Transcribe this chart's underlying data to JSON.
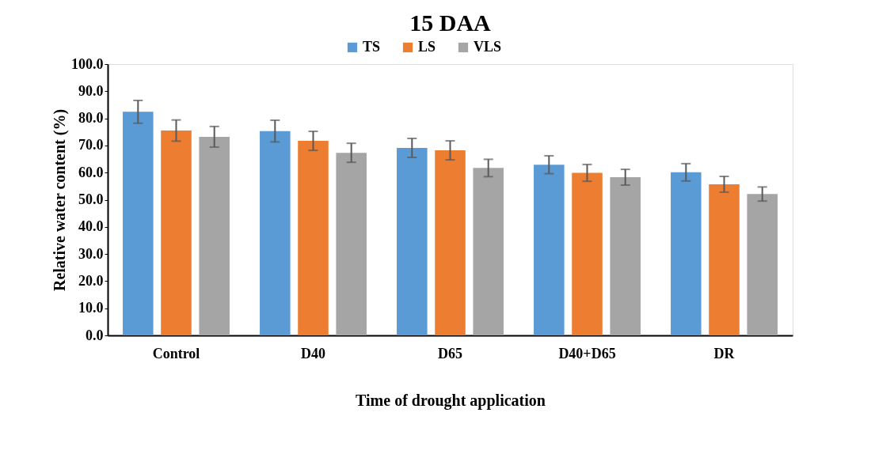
{
  "chart_data": {
    "type": "bar",
    "title": "15 DAA",
    "xlabel": "Time of drought application",
    "ylabel": "Relative water content (%)",
    "categories": [
      "Control",
      "D40",
      "D65",
      "D40+D65",
      "DR"
    ],
    "series": [
      {
        "name": "TS",
        "color": "#5b9bd5",
        "values": [
          82.4,
          75.3,
          69.1,
          62.9,
          60.1
        ],
        "errors": [
          4.2,
          4.0,
          3.5,
          3.3,
          3.2
        ]
      },
      {
        "name": "LS",
        "color": "#ed7d31",
        "values": [
          75.5,
          71.7,
          68.2,
          59.9,
          55.7
        ],
        "errors": [
          3.9,
          3.5,
          3.5,
          3.1,
          2.9
        ]
      },
      {
        "name": "VLS",
        "color": "#a5a5a5",
        "values": [
          73.2,
          67.3,
          61.7,
          58.3,
          52.1
        ],
        "errors": [
          3.8,
          3.5,
          3.2,
          2.9,
          2.6
        ]
      }
    ],
    "ylim": [
      0,
      100
    ],
    "yticks": [
      {
        "value": 0,
        "label": "0.0"
      },
      {
        "value": 10,
        "label": "10.0"
      },
      {
        "value": 20,
        "label": "20.0"
      },
      {
        "value": 30,
        "label": "30.0"
      },
      {
        "value": 40,
        "label": "40.0"
      },
      {
        "value": 50,
        "label": "50.0"
      },
      {
        "value": 60,
        "label": "60.0"
      },
      {
        "value": 70,
        "label": "70.0"
      },
      {
        "value": 80,
        "label": "80.0"
      },
      {
        "value": 90,
        "label": "90.0"
      },
      {
        "value": 100,
        "label": "100.0"
      }
    ],
    "legend": "top",
    "grid": false
  }
}
